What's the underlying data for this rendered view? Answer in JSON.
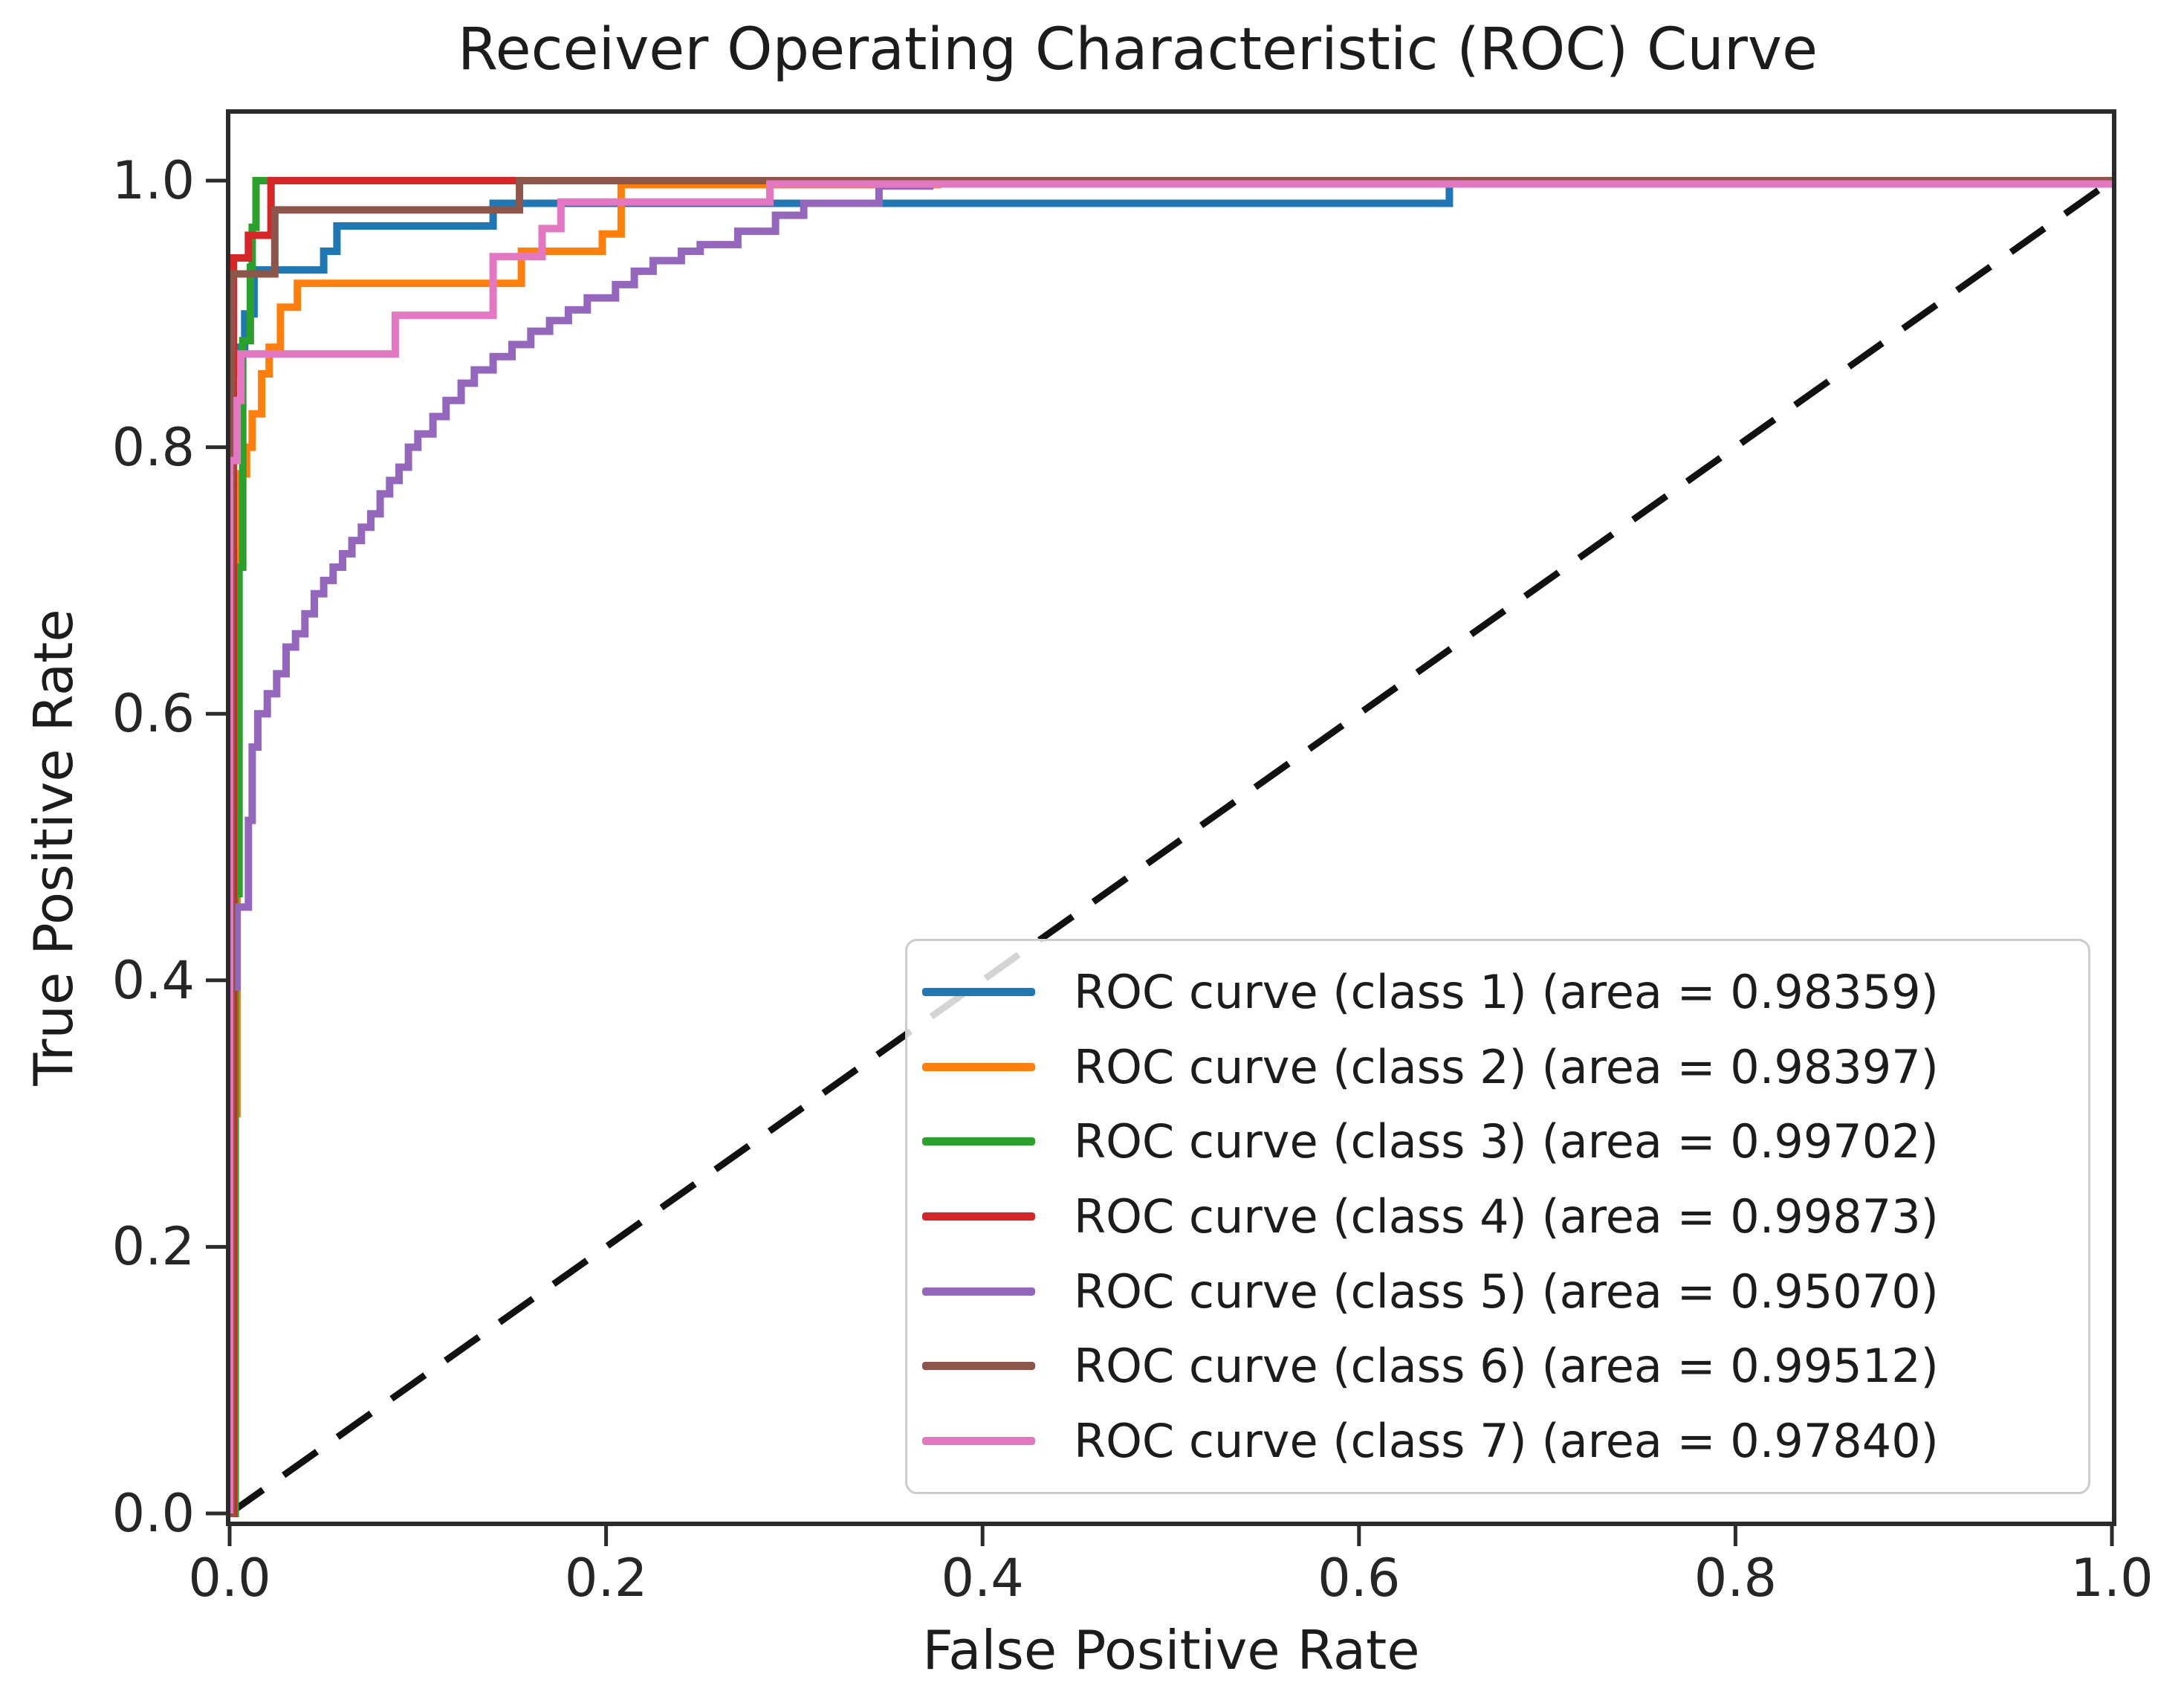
{
  "chart_data": {
    "type": "line",
    "subtype": "roc-step-curves",
    "title": "Receiver Operating Characteristic (ROC) Curve",
    "xlabel": "False Positive Rate",
    "ylabel": "True Positive Rate",
    "xlim": [
      0.0,
      1.0
    ],
    "ylim": [
      0.0,
      1.05
    ],
    "grid": false,
    "legend_position": "lower right",
    "x_ticks": [
      "0.0",
      "0.2",
      "0.4",
      "0.6",
      "0.8",
      "1.0"
    ],
    "x_tick_values": [
      0.0,
      0.2,
      0.4,
      0.6,
      0.8,
      1.0
    ],
    "y_ticks": [
      "0.0",
      "0.2",
      "0.4",
      "0.6",
      "0.8",
      "1.0"
    ],
    "y_tick_values": [
      0.0,
      0.2,
      0.4,
      0.6,
      0.8,
      1.0
    ],
    "series": [
      {
        "name": "chance-diagonal",
        "color": "#111111",
        "style": "dashed",
        "points": [
          [
            0,
            0
          ],
          [
            1,
            1
          ]
        ]
      },
      {
        "name": "ROC curve (class 1)",
        "auc": 0.98359,
        "color": "#1f77b4",
        "style": "solid",
        "points": [
          [
            0,
            0
          ],
          [
            0,
            0.855
          ],
          [
            0.004,
            0.855
          ],
          [
            0.004,
            0.875
          ],
          [
            0.008,
            0.875
          ],
          [
            0.008,
            0.9
          ],
          [
            0.013,
            0.9
          ],
          [
            0.013,
            0.933
          ],
          [
            0.05,
            0.933
          ],
          [
            0.05,
            0.947
          ],
          [
            0.057,
            0.947
          ],
          [
            0.057,
            0.966
          ],
          [
            0.14,
            0.966
          ],
          [
            0.14,
            0.983
          ],
          [
            0.648,
            0.983
          ],
          [
            0.648,
            1
          ],
          [
            1,
            1
          ]
        ]
      },
      {
        "name": "ROC curve (class 2)",
        "auc": 0.98397,
        "color": "#ff7f0e",
        "style": "solid",
        "points": [
          [
            0,
            0
          ],
          [
            0,
            0.3
          ],
          [
            0.004,
            0.3
          ],
          [
            0.004,
            0.72
          ],
          [
            0.006,
            0.72
          ],
          [
            0.006,
            0.78
          ],
          [
            0.009,
            0.78
          ],
          [
            0.009,
            0.8
          ],
          [
            0.012,
            0.8
          ],
          [
            0.012,
            0.825
          ],
          [
            0.017,
            0.825
          ],
          [
            0.017,
            0.855
          ],
          [
            0.021,
            0.855
          ],
          [
            0.021,
            0.875
          ],
          [
            0.027,
            0.875
          ],
          [
            0.027,
            0.905
          ],
          [
            0.036,
            0.905
          ],
          [
            0.036,
            0.923
          ],
          [
            0.155,
            0.923
          ],
          [
            0.155,
            0.947
          ],
          [
            0.198,
            0.947
          ],
          [
            0.198,
            0.96
          ],
          [
            0.208,
            0.96
          ],
          [
            0.208,
            0.997
          ],
          [
            0.376,
            0.997
          ],
          [
            0.376,
            1
          ],
          [
            1,
            1
          ]
        ]
      },
      {
        "name": "ROC curve (class 3)",
        "auc": 0.99702,
        "color": "#2ca02c",
        "style": "solid",
        "points": [
          [
            0,
            0
          ],
          [
            0.003,
            0
          ],
          [
            0.003,
            0.465
          ],
          [
            0.005,
            0.465
          ],
          [
            0.005,
            0.71
          ],
          [
            0.007,
            0.71
          ],
          [
            0.007,
            0.88
          ],
          [
            0.011,
            0.88
          ],
          [
            0.011,
            0.935
          ],
          [
            0.012,
            0.935
          ],
          [
            0.012,
            0.965
          ],
          [
            0.014,
            0.965
          ],
          [
            0.014,
            1
          ],
          [
            1,
            1
          ]
        ]
      },
      {
        "name": "ROC curve (class 4)",
        "auc": 0.99873,
        "color": "#d62728",
        "style": "solid",
        "points": [
          [
            0,
            0
          ],
          [
            0.002,
            0
          ],
          [
            0.002,
            0.942
          ],
          [
            0.01,
            0.942
          ],
          [
            0.01,
            0.959
          ],
          [
            0.022,
            0.959
          ],
          [
            0.022,
            1
          ],
          [
            1,
            1
          ]
        ]
      },
      {
        "name": "ROC curve (class 5)",
        "auc": 0.9507,
        "color": "#9467bd",
        "style": "solid",
        "points": [
          [
            0,
            0
          ],
          [
            0,
            0.395
          ],
          [
            0.004,
            0.395
          ],
          [
            0.004,
            0.455
          ],
          [
            0.01,
            0.455
          ],
          [
            0.01,
            0.52
          ],
          [
            0.012,
            0.52
          ],
          [
            0.012,
            0.575
          ],
          [
            0.015,
            0.575
          ],
          [
            0.015,
            0.6
          ],
          [
            0.02,
            0.6
          ],
          [
            0.02,
            0.615
          ],
          [
            0.025,
            0.615
          ],
          [
            0.025,
            0.63
          ],
          [
            0.03,
            0.63
          ],
          [
            0.03,
            0.65
          ],
          [
            0.035,
            0.65
          ],
          [
            0.035,
            0.66
          ],
          [
            0.04,
            0.66
          ],
          [
            0.04,
            0.675
          ],
          [
            0.045,
            0.675
          ],
          [
            0.045,
            0.69
          ],
          [
            0.05,
            0.69
          ],
          [
            0.05,
            0.7
          ],
          [
            0.055,
            0.7
          ],
          [
            0.055,
            0.71
          ],
          [
            0.06,
            0.71
          ],
          [
            0.06,
            0.72
          ],
          [
            0.065,
            0.72
          ],
          [
            0.065,
            0.73
          ],
          [
            0.07,
            0.73
          ],
          [
            0.07,
            0.74
          ],
          [
            0.075,
            0.74
          ],
          [
            0.075,
            0.75
          ],
          [
            0.08,
            0.75
          ],
          [
            0.08,
            0.765
          ],
          [
            0.085,
            0.765
          ],
          [
            0.085,
            0.775
          ],
          [
            0.09,
            0.775
          ],
          [
            0.09,
            0.785
          ],
          [
            0.095,
            0.785
          ],
          [
            0.095,
            0.8
          ],
          [
            0.1,
            0.8
          ],
          [
            0.1,
            0.81
          ],
          [
            0.108,
            0.81
          ],
          [
            0.108,
            0.823
          ],
          [
            0.115,
            0.823
          ],
          [
            0.115,
            0.835
          ],
          [
            0.123,
            0.835
          ],
          [
            0.123,
            0.848
          ],
          [
            0.13,
            0.848
          ],
          [
            0.13,
            0.858
          ],
          [
            0.14,
            0.858
          ],
          [
            0.14,
            0.868
          ],
          [
            0.15,
            0.868
          ],
          [
            0.15,
            0.877
          ],
          [
            0.16,
            0.877
          ],
          [
            0.16,
            0.887
          ],
          [
            0.17,
            0.887
          ],
          [
            0.17,
            0.895
          ],
          [
            0.18,
            0.895
          ],
          [
            0.18,
            0.903
          ],
          [
            0.19,
            0.903
          ],
          [
            0.19,
            0.912
          ],
          [
            0.205,
            0.912
          ],
          [
            0.205,
            0.922
          ],
          [
            0.215,
            0.922
          ],
          [
            0.215,
            0.932
          ],
          [
            0.225,
            0.932
          ],
          [
            0.225,
            0.94
          ],
          [
            0.24,
            0.94
          ],
          [
            0.24,
            0.947
          ],
          [
            0.25,
            0.947
          ],
          [
            0.25,
            0.952
          ],
          [
            0.27,
            0.952
          ],
          [
            0.27,
            0.962
          ],
          [
            0.29,
            0.962
          ],
          [
            0.29,
            0.974
          ],
          [
            0.305,
            0.974
          ],
          [
            0.305,
            0.983
          ],
          [
            0.345,
            0.983
          ],
          [
            0.345,
            0.996
          ],
          [
            0.372,
            0.996
          ],
          [
            0.372,
            1
          ],
          [
            1,
            1
          ]
        ]
      },
      {
        "name": "ROC curve (class 6)",
        "auc": 0.99512,
        "color": "#8c564b",
        "style": "solid",
        "points": [
          [
            0,
            0
          ],
          [
            0.001,
            0
          ],
          [
            0.001,
            0.93
          ],
          [
            0.024,
            0.93
          ],
          [
            0.024,
            0.978
          ],
          [
            0.154,
            0.978
          ],
          [
            0.154,
            1
          ],
          [
            1,
            1
          ]
        ]
      },
      {
        "name": "ROC curve (class 7)",
        "auc": 0.9784,
        "color": "#e377c2",
        "style": "solid",
        "points": [
          [
            0,
            0
          ],
          [
            0,
            0.79
          ],
          [
            0.004,
            0.79
          ],
          [
            0.004,
            0.835
          ],
          [
            0.006,
            0.835
          ],
          [
            0.006,
            0.87
          ],
          [
            0.088,
            0.87
          ],
          [
            0.088,
            0.899
          ],
          [
            0.14,
            0.899
          ],
          [
            0.14,
            0.943
          ],
          [
            0.166,
            0.943
          ],
          [
            0.166,
            0.964
          ],
          [
            0.176,
            0.964
          ],
          [
            0.176,
            0.984
          ],
          [
            0.287,
            0.984
          ],
          [
            0.287,
            0.9975
          ],
          [
            1,
            0.9975
          ]
        ]
      }
    ]
  },
  "legend": {
    "entries": [
      {
        "label": "ROC curve (class 1) (area = 0.98359)",
        "color": "#1f77b4"
      },
      {
        "label": "ROC curve (class 2) (area = 0.98397)",
        "color": "#ff7f0e"
      },
      {
        "label": "ROC curve (class 3) (area = 0.99702)",
        "color": "#2ca02c"
      },
      {
        "label": "ROC curve (class 4) (area = 0.99873)",
        "color": "#d62728"
      },
      {
        "label": "ROC curve (class 5) (area = 0.95070)",
        "color": "#9467bd"
      },
      {
        "label": "ROC curve (class 6) (area = 0.99512)",
        "color": "#8c564b"
      },
      {
        "label": "ROC curve (class 7) (area = 0.97840)",
        "color": "#e377c2"
      }
    ]
  },
  "colors": {
    "spine": "#2b2b2b",
    "tick_text": "#262626",
    "title_text": "#1c1c1c",
    "legend_border": "#cccccc"
  }
}
